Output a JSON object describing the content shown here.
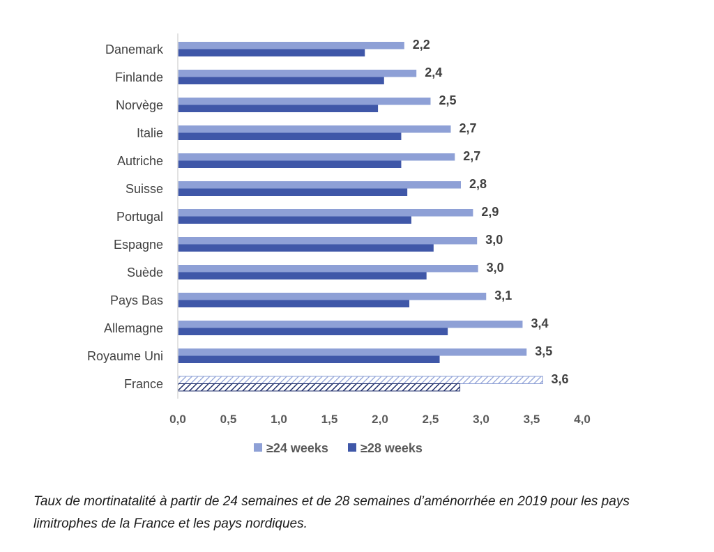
{
  "chart_data": {
    "type": "bar",
    "orientation": "horizontal",
    "categories": [
      "Danemark",
      "Finlande",
      "Norvège",
      "Italie",
      "Autriche",
      "Suisse",
      "Portugal",
      "Espagne",
      "Suède",
      "Pays Bas",
      "Allemagne",
      "Royaume Uni",
      "France"
    ],
    "series": [
      {
        "name": "≥24 weeks",
        "color": "#8EA0D6",
        "values": [
          2.24,
          2.36,
          2.5,
          2.7,
          2.74,
          2.8,
          2.92,
          2.96,
          2.97,
          3.05,
          3.41,
          3.45,
          3.61
        ],
        "data_labels": [
          "2,2",
          "2,4",
          "2,5",
          "2,7",
          "2,7",
          "2,8",
          "2,9",
          "3,0",
          "3,0",
          "3,1",
          "3,4",
          "3,5",
          "3,6"
        ]
      },
      {
        "name": "≥28 weeks",
        "color": "#3F57A8",
        "values": [
          1.85,
          2.04,
          1.98,
          2.21,
          2.21,
          2.27,
          2.31,
          2.53,
          2.46,
          2.29,
          2.67,
          2.59,
          2.79
        ]
      }
    ],
    "highlight_category": "France",
    "highlight_pattern": "hatched",
    "xlim": [
      0,
      4.0
    ],
    "xticks": [
      "0,0",
      "0,5",
      "1,0",
      "1,5",
      "2,0",
      "2,5",
      "3,0",
      "3,5",
      "4,0"
    ],
    "xlabel": "",
    "ylabel": "",
    "grid": false,
    "legend_position": "bottom"
  },
  "caption": "Taux de mortinatalité à partir de 24 semaines et de 28 semaines d’aménorrhée en 2019 pour les pays limitrophes de la France et les pays nordiques."
}
